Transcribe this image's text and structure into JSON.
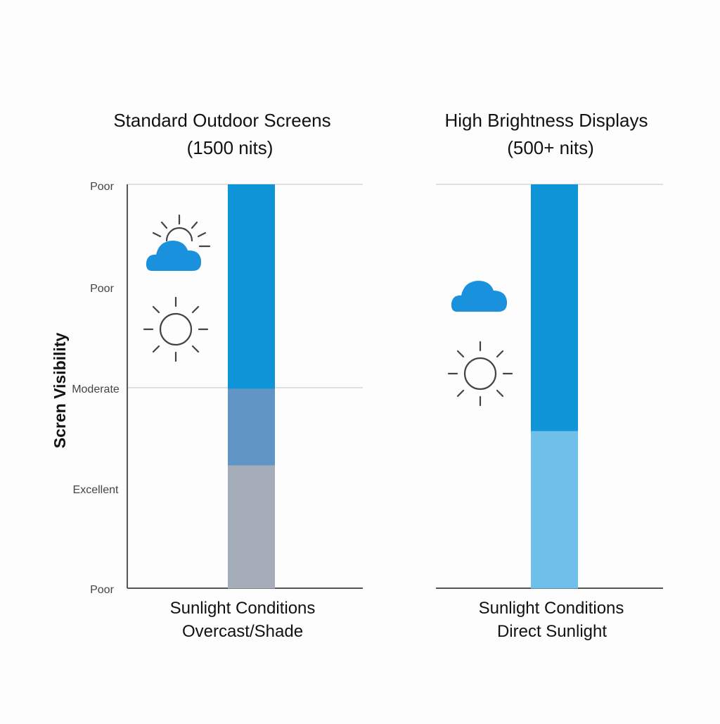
{
  "chart_data": {
    "type": "bar",
    "ylabel": "Scren Visibility",
    "y_ticks": [
      "Poor",
      "Poor",
      "Moderate",
      "Excellent",
      "Poor"
    ],
    "grid": "horizontal lines at the top and Moderate levels",
    "colors": {
      "bright_blue": "#1094d8",
      "steel_blue": "#6195c6",
      "gray": "#a4adb8",
      "light_blue": "#6ebfea",
      "axis": "#555555",
      "grid": "#d4d7da",
      "icon_blue": "#1a91dc",
      "icon_line": "#444444"
    },
    "panels": [
      {
        "title_line1": "Standard Outdoor Screens",
        "title_line2": "(1500 nits)",
        "xlabel_line1": "Sunlight Conditions",
        "xlabel_line2": "Overcast/Shade",
        "icons": [
          "partly-cloudy-icon",
          "sun-icon"
        ],
        "segments": [
          {
            "fraction": 0.305,
            "color": "#a4adb8"
          },
          {
            "fraction": 0.19,
            "color": "#6195c6"
          },
          {
            "fraction": 0.505,
            "color": "#1094d8"
          }
        ]
      },
      {
        "title_line1": "High Brightness Displays",
        "title_line2": "(500+ nits)",
        "xlabel_line1": "Sunlight Conditions",
        "xlabel_line2": "Direct Sunlight",
        "icons": [
          "cloud-icon",
          "sun-icon"
        ],
        "segments": [
          {
            "fraction": 0.39,
            "color": "#6ebfea"
          },
          {
            "fraction": 0.61,
            "color": "#1094d8"
          }
        ]
      }
    ]
  }
}
